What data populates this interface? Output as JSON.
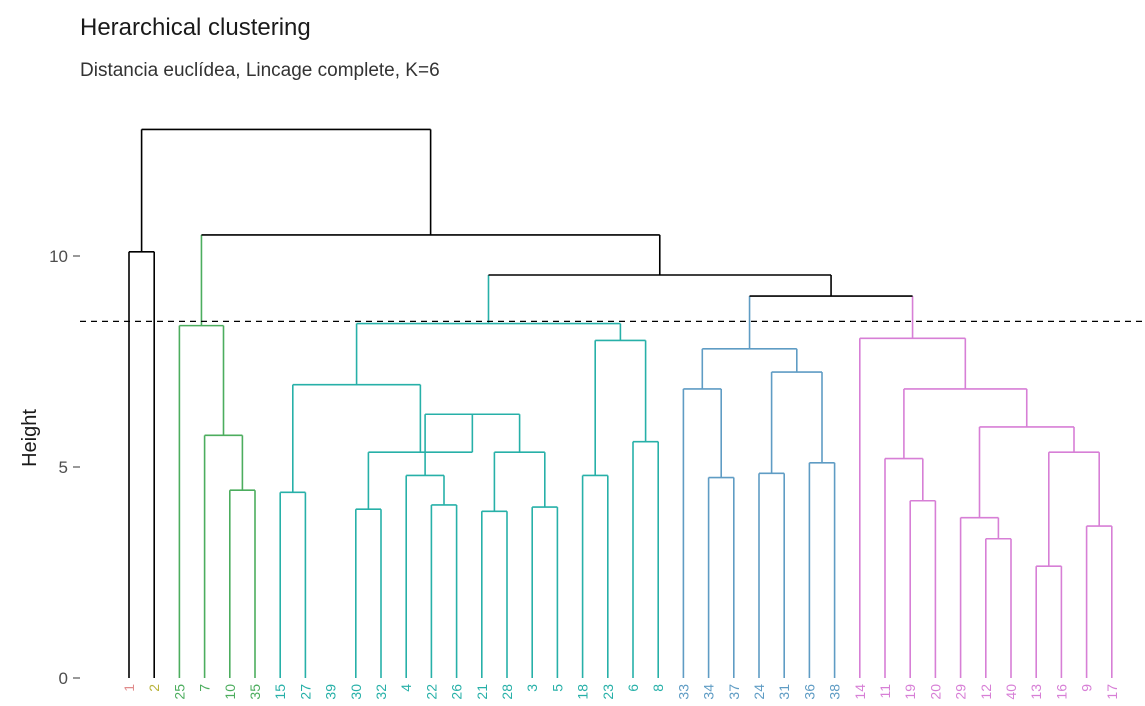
{
  "chart_data": {
    "type": "dendrogram",
    "title": "Herarchical clustering",
    "subtitle": "Distancia euclídea, Lincage complete, K=6",
    "ylabel": "Height",
    "ylim": [
      0,
      13
    ],
    "yticks": [
      0,
      5,
      10
    ],
    "cut_height": 8.45,
    "leaves": [
      {
        "label": "1",
        "cluster": 1
      },
      {
        "label": "2",
        "cluster": 2
      },
      {
        "label": "25",
        "cluster": 3
      },
      {
        "label": "7",
        "cluster": 3
      },
      {
        "label": "10",
        "cluster": 3
      },
      {
        "label": "35",
        "cluster": 3
      },
      {
        "label": "15",
        "cluster": 4
      },
      {
        "label": "27",
        "cluster": 4
      },
      {
        "label": "39",
        "cluster": 4
      },
      {
        "label": "30",
        "cluster": 4
      },
      {
        "label": "32",
        "cluster": 4
      },
      {
        "label": "4",
        "cluster": 4
      },
      {
        "label": "22",
        "cluster": 4
      },
      {
        "label": "26",
        "cluster": 4
      },
      {
        "label": "21",
        "cluster": 4
      },
      {
        "label": "28",
        "cluster": 4
      },
      {
        "label": "3",
        "cluster": 4
      },
      {
        "label": "5",
        "cluster": 4
      },
      {
        "label": "18",
        "cluster": 4
      },
      {
        "label": "23",
        "cluster": 4
      },
      {
        "label": "6",
        "cluster": 4
      },
      {
        "label": "8",
        "cluster": 4
      },
      {
        "label": "33",
        "cluster": 5
      },
      {
        "label": "34",
        "cluster": 5
      },
      {
        "label": "37",
        "cluster": 5
      },
      {
        "label": "24",
        "cluster": 5
      },
      {
        "label": "31",
        "cluster": 5
      },
      {
        "label": "36",
        "cluster": 5
      },
      {
        "label": "38",
        "cluster": 5
      },
      {
        "label": "14",
        "cluster": 6
      },
      {
        "label": "11",
        "cluster": 6
      },
      {
        "label": "19",
        "cluster": 6
      },
      {
        "label": "20",
        "cluster": 6
      },
      {
        "label": "29",
        "cluster": 6
      },
      {
        "label": "12",
        "cluster": 6
      },
      {
        "label": "40",
        "cluster": 6
      },
      {
        "label": "13",
        "cluster": 6
      },
      {
        "label": "16",
        "cluster": 6
      },
      {
        "label": "9",
        "cluster": 6
      },
      {
        "label": "17",
        "cluster": 6
      }
    ],
    "cluster_colors": {
      "0": "#000000",
      "1": "#e08b8b",
      "2": "#b9b33a",
      "3": "#4cad5e",
      "4": "#27b0a8",
      "5": "#5f9cc4",
      "6": "#d77fd6"
    },
    "merges": [
      {
        "a": "L:9",
        "b": "L:10",
        "h": 4.0,
        "cluster": 4
      },
      {
        "a": "L:14",
        "b": "L:15",
        "h": 3.95,
        "cluster": 4
      },
      {
        "a": "L:16",
        "b": "L:17",
        "h": 4.05,
        "cluster": 4
      },
      {
        "a": "L:12",
        "b": "L:13",
        "h": 4.1,
        "cluster": 4
      },
      {
        "a": "L:6",
        "b": "L:7",
        "h": 4.4,
        "cluster": 4
      },
      {
        "a": "L:4",
        "b": "L:5",
        "h": 4.45,
        "cluster": 3
      },
      {
        "a": "L:34",
        "b": "L:35",
        "h": 3.3,
        "cluster": 6
      },
      {
        "a": "L:36",
        "b": "L:37",
        "h": 2.65,
        "cluster": 6
      },
      {
        "a": "L:38",
        "b": "L:39",
        "h": 3.6,
        "cluster": 6
      },
      {
        "a": "L:31",
        "b": "L:32",
        "h": 4.2,
        "cluster": 6
      },
      {
        "a": "L:33",
        "b": "M:6",
        "h": 3.8,
        "cluster": 6
      },
      {
        "a": "M:7",
        "b": "M:8",
        "h": 5.35,
        "cluster": 6
      },
      {
        "a": "M:10",
        "b": "M:11",
        "h": 5.95,
        "cluster": 6
      },
      {
        "a": "L:30",
        "b": "M:9",
        "h": 5.2,
        "cluster": 6
      },
      {
        "a": "M:13",
        "b": "M:12",
        "h": 6.85,
        "cluster": 6
      },
      {
        "a": "L:29",
        "b": "M:14",
        "h": 8.05,
        "cluster": 6
      },
      {
        "a": "L:23",
        "b": "L:24",
        "h": 4.75,
        "cluster": 5
      },
      {
        "a": "L:22",
        "b": "M:16",
        "h": 6.85,
        "cluster": 5
      },
      {
        "a": "L:25",
        "b": "L:26",
        "h": 4.85,
        "cluster": 5
      },
      {
        "a": "L:27",
        "b": "L:28",
        "h": 5.1,
        "cluster": 5
      },
      {
        "a": "M:18",
        "b": "M:19",
        "h": 7.25,
        "cluster": 5
      },
      {
        "a": "M:17",
        "b": "M:20",
        "h": 7.8,
        "cluster": 5
      },
      {
        "a": "M:21",
        "b": "M:15",
        "h": 9.05,
        "cluster": 0
      },
      {
        "a": "L:18",
        "b": "L:19",
        "h": 4.8,
        "cluster": 4
      },
      {
        "a": "L:20",
        "b": "L:21",
        "h": 5.6,
        "cluster": 4
      },
      {
        "a": "M:23",
        "b": "M:24",
        "h": 8.0,
        "cluster": 4
      },
      {
        "a": "M:1",
        "b": "M:2",
        "h": 5.35,
        "cluster": 4
      },
      {
        "a": "L:11",
        "b": "M:3",
        "h": 4.8,
        "cluster": 4
      },
      {
        "a": "M:27",
        "b": "M:26",
        "h": 6.25,
        "cluster": 4
      },
      {
        "a": "M:0",
        "b": "M:28",
        "h": 5.35,
        "cluster": 4
      },
      {
        "a": "M:29",
        "b": "M:28",
        "h": 6.85,
        "cluster": 4,
        "skip": true
      },
      {
        "a": "L:8",
        "b": "M:29",
        "h": 6.85,
        "cluster": 4,
        "skip": true
      },
      {
        "a": "M:4",
        "b": "M:29",
        "h": 6.95,
        "cluster": 4
      },
      {
        "a": "M:32",
        "b": "M:25",
        "h": 8.4,
        "cluster": 4
      },
      {
        "a": "M:33",
        "b": "M:22",
        "h": 9.55,
        "cluster": 0
      },
      {
        "a": "L:3",
        "b": "M:5",
        "h": 5.75,
        "cluster": 3
      },
      {
        "a": "L:2",
        "b": "M:35",
        "h": 8.35,
        "cluster": 3
      },
      {
        "a": "M:36",
        "b": "M:34",
        "h": 10.5,
        "cluster": 0
      },
      {
        "a": "L:0",
        "b": "L:1",
        "h": 10.1,
        "cluster": 0
      },
      {
        "a": "M:38",
        "b": "M:37",
        "h": 13.0,
        "cluster": 0
      }
    ]
  }
}
